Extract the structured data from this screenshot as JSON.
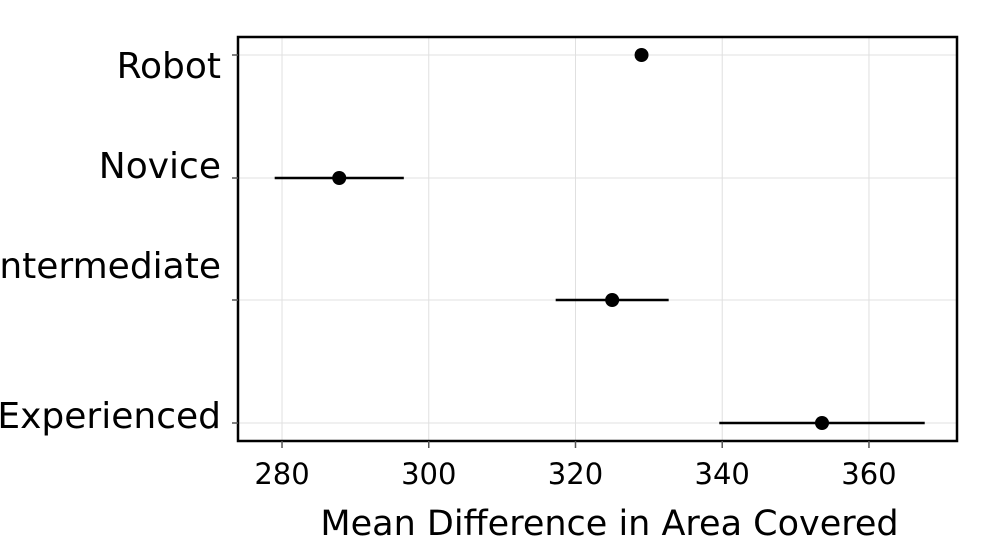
{
  "chart_data": {
    "type": "scatter",
    "title": "",
    "xlabel": "Mean Difference in Area Covered",
    "ylabel": "",
    "xlim": [
      274,
      372
    ],
    "x_ticks": [
      280,
      300,
      320,
      340,
      360
    ],
    "grid": true,
    "legend": "none",
    "categories": [
      "Robot",
      "Novice",
      "Intermediate",
      "Experienced"
    ],
    "points": [
      {
        "category": "Robot",
        "mean": 329,
        "low": null,
        "high": null
      },
      {
        "category": "Novice",
        "mean": 287.8,
        "low": 279,
        "high": 296.6
      },
      {
        "category": "Intermediate",
        "mean": 325,
        "low": 317.3,
        "high": 332.7
      },
      {
        "category": "Experienced",
        "mean": 353.6,
        "low": 339.6,
        "high": 367.6
      }
    ],
    "colors": {
      "marker": "#000000",
      "errorbar": "#000000",
      "grid": "#e0e0e0",
      "frame": "#000000"
    }
  }
}
